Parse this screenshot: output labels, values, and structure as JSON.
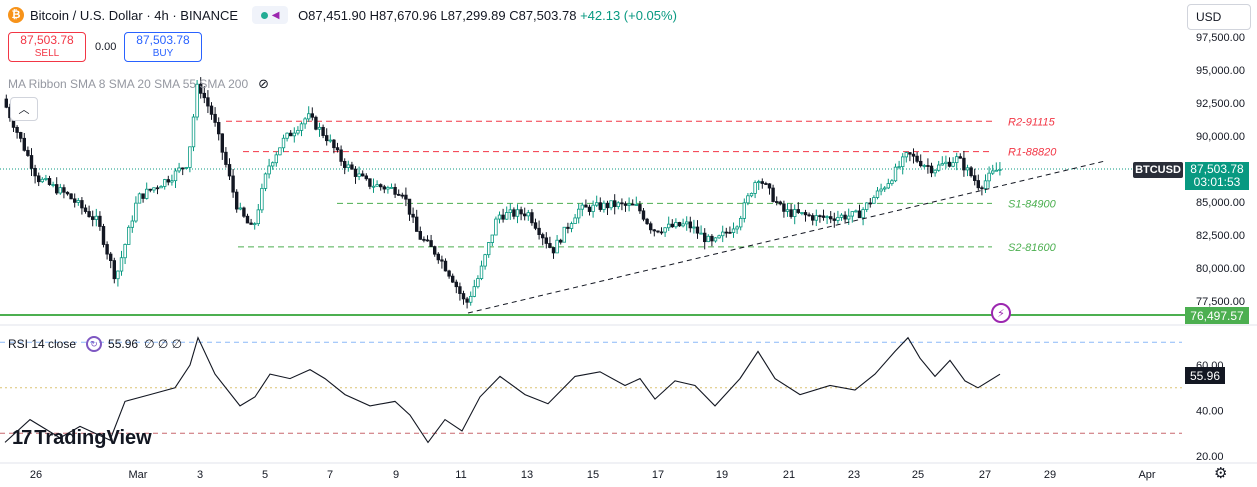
{
  "header": {
    "symbol_title": "Bitcoin / U.S. Dollar · 4h · BINANCE",
    "ohlc": {
      "open": "O87,451.90",
      "high": "H87,670.96",
      "low": "L87,299.89",
      "close": "C87,503.78",
      "change": "+42.13 (+0.05%)"
    }
  },
  "trade": {
    "sell_price": "87,503.78",
    "sell_label": "SELL",
    "spread": "0.00",
    "buy_price": "87,503.78",
    "buy_label": "BUY"
  },
  "indicator": {
    "ribbon_label": "MA Ribbon SMA 8 SMA 20 SMA 55 SMA 200"
  },
  "rsi": {
    "label": "RSI 14 close",
    "value": "55.96",
    "extra": "∅ ∅ ∅",
    "badge": "55.96"
  },
  "currency": {
    "selected": "USD",
    "caret": "⌄"
  },
  "logo": {
    "text": "TradingView",
    "mark": "17"
  },
  "badges": {
    "symbol": "BTCUSD",
    "price": "87,503.78",
    "countdown": "03:01:53",
    "green_line": "76,497.57"
  },
  "icons": {
    "bitcoin": "bitcoin-icon",
    "indicators": "indicators-icon",
    "hide": "eye-hide-icon",
    "rsi": "rsi-settings-icon",
    "lightning": "lightning-icon",
    "gear": "gear-icon",
    "collapse": "chevron-up-icon"
  },
  "colors": {
    "up": "#089981",
    "down": "#131722",
    "resistance": "#f23645",
    "support": "#4caf50",
    "rsi": "#131722"
  },
  "chart_data": {
    "type": "candlestick",
    "price_axis": {
      "ticks": [
        "97,500.00",
        "95,000.00",
        "92,500.00",
        "90,000.00",
        "87,500.00",
        "85,000.00",
        "82,500.00",
        "80,000.00",
        "77,500.00"
      ],
      "ylim": [
        75500,
        98200
      ]
    },
    "time_axis": {
      "ticks": [
        "26",
        "Mar",
        "3",
        "5",
        "7",
        "9",
        "11",
        "13",
        "15",
        "17",
        "19",
        "21",
        "23",
        "25",
        "27",
        "29",
        "Apr"
      ]
    },
    "levels": [
      {
        "label": "R2-91115",
        "value": 91115,
        "kind": "resistance"
      },
      {
        "label": "R1-88820",
        "value": 88820,
        "kind": "resistance"
      },
      {
        "label": "S1-84900",
        "value": 84900,
        "kind": "support"
      },
      {
        "label": "S2-81600",
        "value": 81600,
        "kind": "support"
      }
    ],
    "current_price": 87503.78,
    "support_line": 76497.57,
    "trendline": {
      "from": {
        "date": "Mar 11",
        "price": 76500
      },
      "to": {
        "date": "Mar 29",
        "price": 88000
      }
    },
    "rsi": {
      "ticks": [
        "60.00",
        "40.00",
        "20.00"
      ],
      "ylim": [
        18,
        76
      ],
      "levels": [
        70,
        50,
        30
      ],
      "last": 55.96
    }
  }
}
